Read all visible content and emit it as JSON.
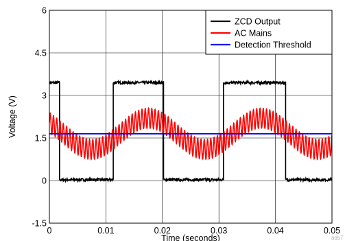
{
  "chart_data": {
    "type": "line",
    "xlabel": "Time (seconds)",
    "ylabel": "Voltage (V)",
    "xlim": [
      0,
      0.05
    ],
    "ylim": [
      -1.5,
      6
    ],
    "xticks": [
      0,
      0.01,
      0.02,
      0.03,
      0.04,
      0.05
    ],
    "xtick_labels": [
      "0",
      "0.01",
      "0.02",
      "0.03",
      "0.04",
      "0.05"
    ],
    "yticks": [
      -1.5,
      0,
      1.5,
      3,
      4.5,
      6
    ],
    "ytick_labels": [
      "-1.5",
      "0",
      "1.5",
      "3",
      "4.5",
      "6"
    ],
    "grid": true,
    "legend_position": "top-right",
    "series": [
      {
        "name": "ZCD Output",
        "color": "#000000",
        "x": [
          0,
          0.0018,
          0.0018,
          0.0113,
          0.0113,
          0.0202,
          0.0202,
          0.0212,
          0.0212,
          0.0308,
          0.0308,
          0.0418,
          0.0418,
          0.05
        ],
        "y": [
          3.45,
          3.45,
          0.03,
          0.03,
          3.45,
          3.45,
          0.03,
          0.03,
          0.03,
          0.03,
          3.45,
          3.45,
          0.03,
          0.03
        ],
        "noise_amplitude": 0.05
      },
      {
        "name": "AC Mains",
        "color": "#ff0000",
        "description_values": {
          "offset": 1.65,
          "low_frequency_amplitude": 0.55,
          "low_frequency_period": 0.02,
          "low_frequency_phase_peak_at": 0.0175,
          "ripple_amplitude": 0.35,
          "ripple_period": 0.00058
        }
      },
      {
        "name": "Detection Threshold",
        "color": "#0000ff",
        "x": [
          0,
          0.05
        ],
        "y": [
          1.65,
          1.65
        ]
      }
    ]
  },
  "watermark": "ads7"
}
